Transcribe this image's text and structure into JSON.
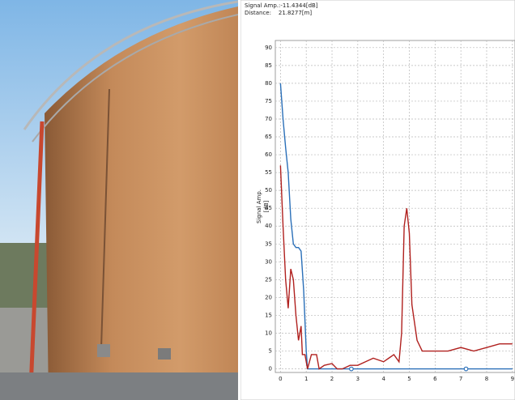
{
  "readout": {
    "signal_amp": "Signal Amp.:-11.4344[dB]",
    "distance": "Distance:    21.8277[m]"
  },
  "chart_data": {
    "type": "line",
    "ylabel": [
      "Signal Amp.",
      "[dB]"
    ],
    "xlim": [
      -0.2,
      9.1
    ],
    "xticks": [
      0,
      1,
      2,
      3,
      4,
      5,
      6,
      7,
      8,
      9
    ],
    "ylim": [
      -1,
      92
    ],
    "yticks": [
      0,
      5,
      10,
      15,
      20,
      25,
      30,
      35,
      40,
      45,
      50,
      55,
      60,
      65,
      70,
      75,
      80,
      85,
      90
    ],
    "grid": true,
    "series": [
      {
        "color": "#2a6fb8",
        "x": [
          0,
          0.1,
          0.2,
          0.3,
          0.4,
          0.5,
          0.6,
          0.7,
          0.8,
          0.9,
          1.0,
          1.05,
          2,
          3,
          4,
          5,
          6,
          7,
          8,
          9
        ],
        "values": [
          80,
          70,
          62,
          55,
          42,
          35,
          34,
          34,
          33,
          22,
          5,
          0,
          0,
          0,
          0,
          0,
          0,
          0,
          0,
          0
        ]
      },
      {
        "color": "#b0201e",
        "x": [
          0,
          0.1,
          0.2,
          0.3,
          0.4,
          0.5,
          0.6,
          0.7,
          0.8,
          0.85,
          0.95,
          1.05,
          1.2,
          1.4,
          1.5,
          1.7,
          2.0,
          2.2,
          2.4,
          2.7,
          3.0,
          3.3,
          3.6,
          4.0,
          4.2,
          4.4,
          4.6,
          4.7,
          4.8,
          4.9,
          5.0,
          5.1,
          5.3,
          5.5,
          6.0,
          6.5,
          7.0,
          7.5,
          8.0,
          8.5,
          9.0
        ],
        "values": [
          57,
          40,
          25,
          17,
          28,
          25,
          15,
          8,
          12,
          4,
          4,
          0,
          4,
          4,
          0,
          1,
          1.5,
          0,
          0,
          1,
          1,
          2,
          3,
          2,
          3,
          4,
          2,
          10,
          40,
          45,
          38,
          18,
          8,
          5,
          5,
          5,
          6,
          5,
          6,
          7,
          7
        ]
      }
    ],
    "markers": {
      "color": "#2a6fb8",
      "x": [
        2.75,
        7.2
      ],
      "values": [
        0,
        0
      ]
    }
  }
}
